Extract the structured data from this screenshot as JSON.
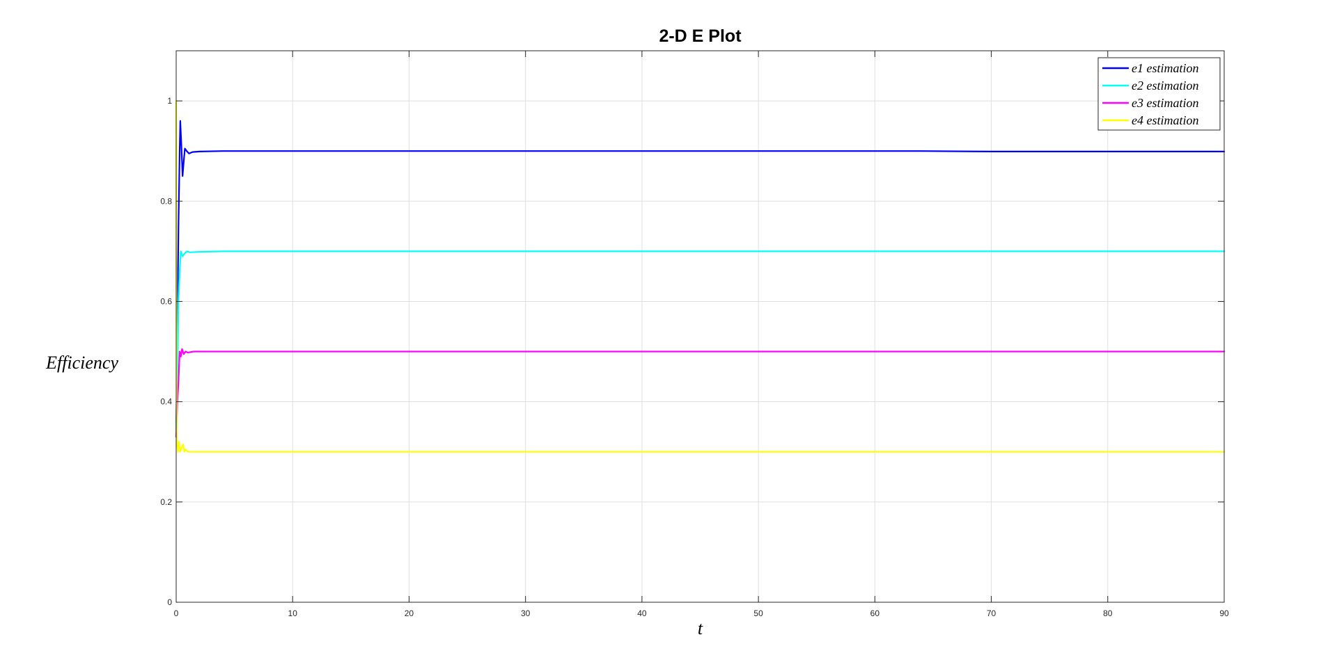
{
  "chart_data": {
    "type": "line",
    "title": "2-D E Plot",
    "xlabel": "t",
    "ylabel": "Efficiency",
    "xlim": [
      0,
      90
    ],
    "ylim": [
      0,
      1.1
    ],
    "xticks": [
      "0",
      "10",
      "20",
      "30",
      "40",
      "50",
      "60",
      "70",
      "80",
      "90"
    ],
    "yticks": [
      "0",
      "0.2",
      "0.4",
      "0.6",
      "0.8",
      "1"
    ],
    "grid": true,
    "legend_position": "top-right",
    "series": [
      {
        "name": "e1 estimation",
        "color": "#0000ff",
        "x": [
          0,
          0.1,
          0.2,
          0.3,
          0.35,
          0.45,
          0.55,
          0.65,
          0.75,
          0.9,
          1.1,
          1.4,
          2,
          4,
          10,
          20,
          30,
          40,
          50,
          60,
          64,
          70,
          80,
          90
        ],
        "y": [
          0.33,
          0.55,
          0.75,
          0.9,
          0.96,
          0.91,
          0.85,
          0.88,
          0.905,
          0.9,
          0.895,
          0.898,
          0.899,
          0.9,
          0.9,
          0.9,
          0.9,
          0.9,
          0.9,
          0.9,
          0.9,
          0.899,
          0.899,
          0.899
        ]
      },
      {
        "name": "e2 estimation",
        "color": "#00ffff",
        "x": [
          0,
          0.1,
          0.2,
          0.3,
          0.4,
          0.55,
          0.7,
          0.9,
          1.2,
          2,
          4,
          10,
          20,
          30,
          40,
          50,
          60,
          70,
          80,
          90
        ],
        "y": [
          0.33,
          0.45,
          0.6,
          0.66,
          0.7,
          0.69,
          0.695,
          0.7,
          0.698,
          0.699,
          0.7,
          0.7,
          0.7,
          0.7,
          0.7,
          0.7,
          0.7,
          0.7,
          0.7,
          0.7
        ]
      },
      {
        "name": "e3 estimation",
        "color": "#ff00ff",
        "x": [
          0,
          0.1,
          0.2,
          0.3,
          0.4,
          0.5,
          0.65,
          0.8,
          1.0,
          1.5,
          3,
          10,
          20,
          30,
          40,
          50,
          60,
          70,
          80,
          90
        ],
        "y": [
          0.33,
          0.4,
          0.44,
          0.5,
          0.49,
          0.505,
          0.495,
          0.5,
          0.498,
          0.5,
          0.5,
          0.5,
          0.5,
          0.5,
          0.5,
          0.5,
          0.5,
          0.5,
          0.5,
          0.5
        ]
      },
      {
        "name": "e4 estimation",
        "color": "#ffff00",
        "x": [
          0,
          0.02,
          0.05,
          0.1,
          0.15,
          0.25,
          0.35,
          0.5,
          0.6,
          0.7,
          0.8,
          1.0,
          2,
          10,
          20,
          30,
          40,
          50,
          60,
          70,
          80,
          90
        ],
        "y": [
          1.0,
          0.7,
          0.33,
          0.31,
          0.3,
          0.32,
          0.3,
          0.31,
          0.315,
          0.3,
          0.305,
          0.3,
          0.3,
          0.3,
          0.3,
          0.3,
          0.3,
          0.3,
          0.3,
          0.3,
          0.3,
          0.3
        ]
      }
    ]
  }
}
